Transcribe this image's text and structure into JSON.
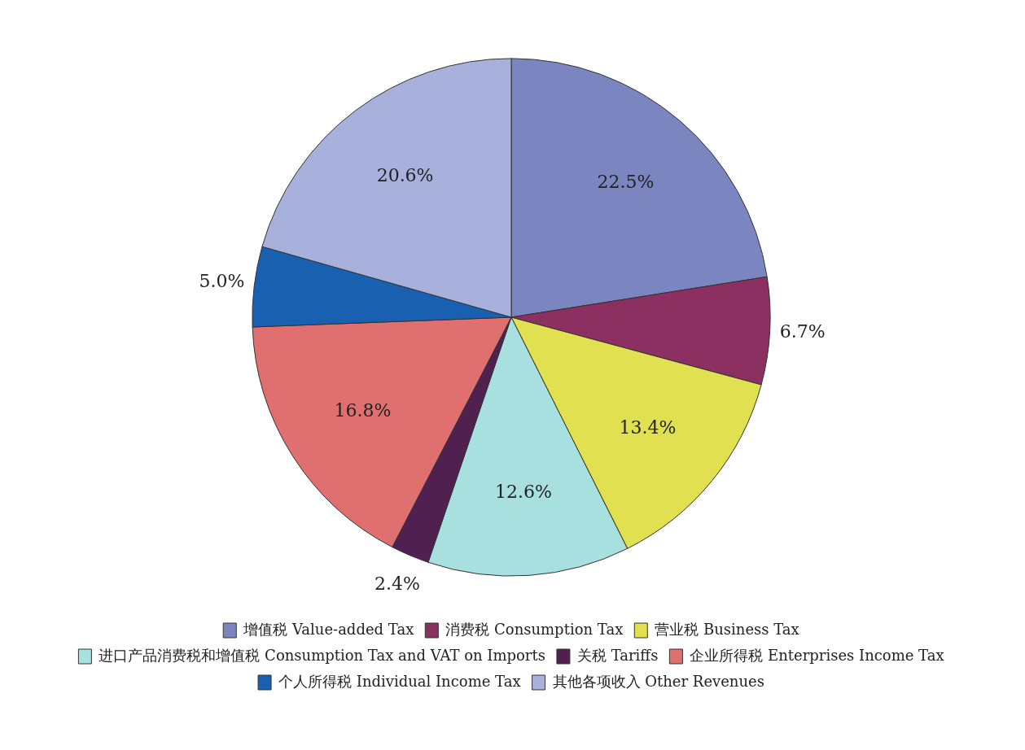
{
  "chart_data": {
    "type": "pie",
    "categories": [
      "增值税 Value-added Tax",
      "消费税 Consumption Tax",
      "营业税 Business Tax",
      "进口产品消费税和增值税 Consumption Tax and VAT on Imports",
      "关税 Tariffs",
      "企业所得税 Enterprises Income Tax",
      "个人所得税 Individual Income Tax",
      "其他各项收入 Other Revenues"
    ],
    "values": [
      22.5,
      6.7,
      13.4,
      12.6,
      2.4,
      16.8,
      5.0,
      20.6
    ],
    "value_labels": [
      "22.5%",
      "6.7%",
      "13.4%",
      "12.6%",
      "2.4%",
      "16.8%",
      "5.0%",
      "20.6%"
    ],
    "colors": [
      "#7b86c0",
      "#8b3060",
      "#e0e050",
      "#a8e0e0",
      "#502050",
      "#e07070",
      "#1a60b0",
      "#a8b0dc"
    ],
    "legend": "bottom"
  }
}
